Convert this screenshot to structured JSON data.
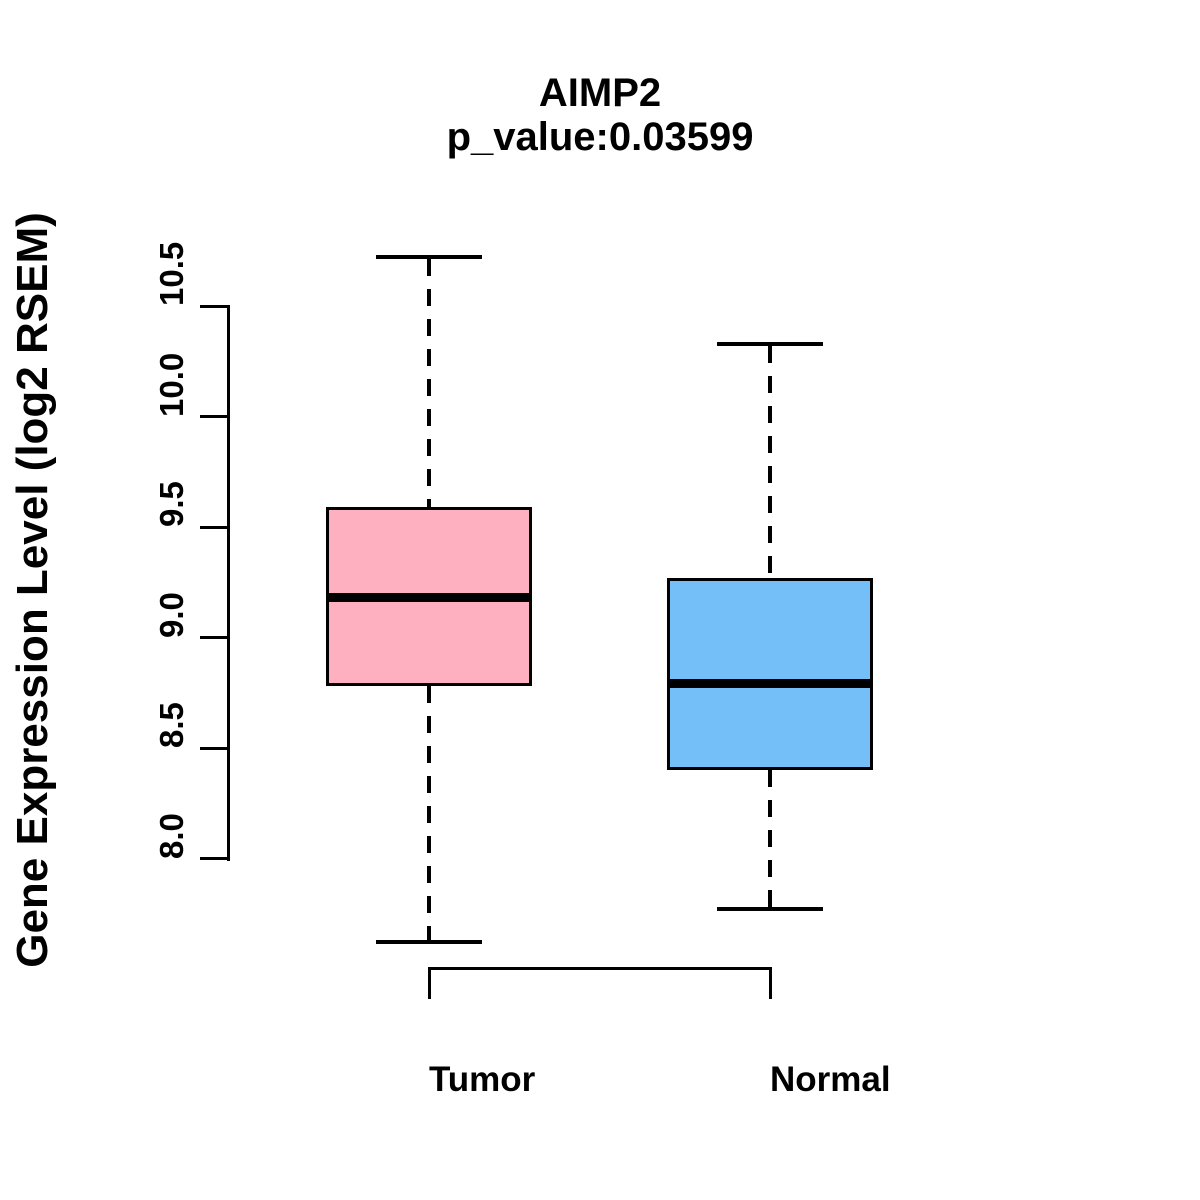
{
  "title": "AIMP2",
  "subtitle": "p_value:0.03599",
  "y_axis_label": "Gene Expression Level (log2 RSEM)",
  "colors": {
    "tumor_box_fill": "#FFB0C0",
    "normal_box_fill": "#74BFF7",
    "stroke": "#000000",
    "background": "#FFFFFF"
  },
  "chart_data": {
    "type": "boxplot",
    "title": "AIMP2",
    "subtitle": "p_value:0.03599",
    "xlabel": "",
    "ylabel": "Gene Expression Level (log2 RSEM)",
    "categories": [
      "Tumor",
      "Normal"
    ],
    "series": [
      {
        "name": "Tumor",
        "color": "#FFB0C0",
        "whisker_low": 7.62,
        "q1": 8.78,
        "median": 9.18,
        "q3": 9.59,
        "whisker_high": 10.72
      },
      {
        "name": "Normal",
        "color": "#74BFF7",
        "whisker_low": 7.77,
        "q1": 8.4,
        "median": 8.79,
        "q3": 9.27,
        "whisker_high": 10.33
      }
    ],
    "ytick_labels": [
      "8.0",
      "8.5",
      "9.0",
      "9.5",
      "10.0",
      "10.5"
    ],
    "ytick_values": [
      8.0,
      8.5,
      9.0,
      9.5,
      10.0,
      10.5
    ],
    "ylim": [
      7.4,
      10.85
    ],
    "grid": false,
    "legend": null
  }
}
